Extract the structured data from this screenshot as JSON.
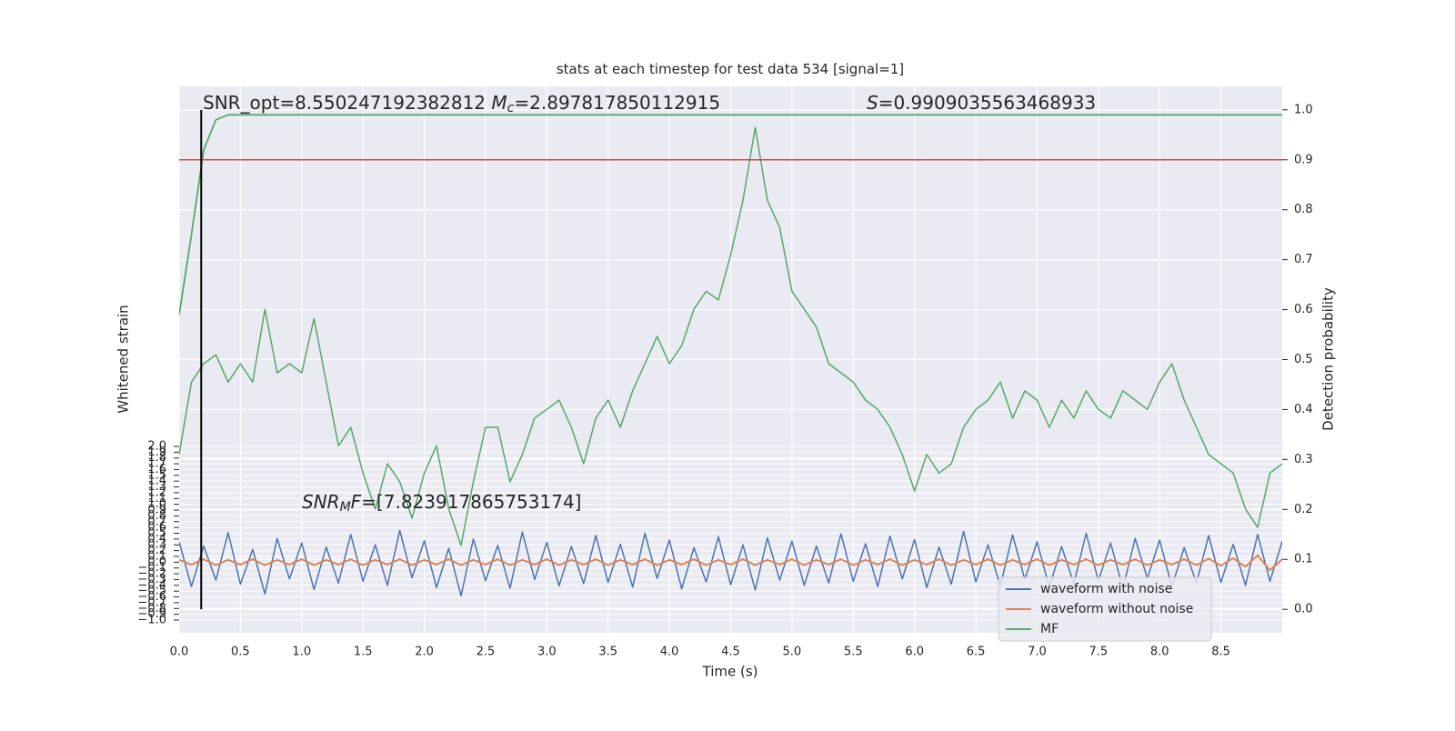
{
  "chart_data": {
    "type": "line",
    "title": "stats at each timestep for test data 534 [signal=1]",
    "xlabel": "Time (s)",
    "ylabel": "Whitened strain",
    "y2label": "Detection probability",
    "xlim": [
      0,
      9.0
    ],
    "ylim": [
      -1.22,
      8.22
    ],
    "y2lim": [
      -0.047,
      1.047
    ],
    "grid": true,
    "legend": "lower right",
    "xticks": [
      {
        "value": 0,
        "label": "0.0"
      },
      0.5,
      {
        "value": 1,
        "label": "1.0"
      },
      1.5,
      {
        "value": 2,
        "label": "2.0"
      },
      2.5,
      {
        "value": 3,
        "label": "3.0"
      },
      3.5,
      {
        "value": 4,
        "label": "4.0"
      },
      4.5,
      {
        "value": 5,
        "label": "5.0"
      },
      5.5,
      {
        "value": 6,
        "label": "6.0"
      },
      6.5,
      {
        "value": 7,
        "label": "7.0"
      },
      7.5,
      {
        "value": 8,
        "label": "8.0"
      },
      8.5
    ],
    "yticks": [
      {
        "value": -1,
        "label": "−1.0"
      },
      {
        "value": -0.9,
        "label": "−0.9"
      },
      {
        "value": -0.8,
        "label": "−0.8"
      },
      {
        "value": -0.7,
        "label": "−0.7"
      },
      {
        "value": -0.6,
        "label": "−0.6"
      },
      {
        "value": -0.5,
        "label": "−0.5"
      },
      {
        "value": -0.4,
        "label": "−0.4"
      },
      {
        "value": -0.3,
        "label": "−0.3"
      },
      {
        "value": -0.2,
        "label": "−0.2"
      },
      {
        "value": -0.1,
        "label": "−0.1"
      },
      {
        "value": 0,
        "label": "0.0"
      },
      0.1,
      0.2,
      0.3,
      0.4,
      0.5,
      0.6,
      0.7,
      0.8,
      0.9,
      {
        "value": 1,
        "label": "1.0"
      },
      1.1,
      1.2,
      1.3,
      1.4,
      1.5,
      1.6,
      1.7,
      1.8,
      1.9,
      {
        "value": 2,
        "label": "2.0"
      }
    ],
    "y2ticks": [
      {
        "value": 0,
        "label": "0.0"
      },
      0.1,
      0.2,
      0.3,
      0.4,
      0.5,
      0.6,
      0.7,
      0.8,
      0.9,
      {
        "value": 1,
        "label": "1.0"
      }
    ],
    "x": [
      0,
      0.1,
      0.2,
      0.3,
      0.4,
      0.5,
      0.6,
      0.7,
      0.8,
      0.9,
      1,
      1.1,
      1.2,
      1.3,
      1.4,
      1.5,
      1.6,
      1.7,
      1.8,
      1.9,
      2,
      2.1,
      2.2,
      2.3,
      2.4,
      2.5,
      2.6,
      2.7,
      2.8,
      2.9,
      3,
      3.1,
      3.2,
      3.3,
      3.4,
      3.5,
      3.6,
      3.7,
      3.8,
      3.9,
      4,
      4.1,
      4.2,
      4.3,
      4.4,
      4.5,
      4.6,
      4.7,
      4.8,
      4.9,
      5,
      5.1,
      5.2,
      5.3,
      5.4,
      5.5,
      5.6,
      5.7,
      5.8,
      5.9,
      6,
      6.1,
      6.2,
      6.3,
      6.4,
      6.5,
      6.6,
      6.7,
      6.8,
      6.9,
      7,
      7.1,
      7.2,
      7.3,
      7.4,
      7.5,
      7.6,
      7.7,
      7.8,
      7.9,
      8,
      8.1,
      8.2,
      8.3,
      8.4,
      8.5,
      8.6,
      8.7,
      8.8,
      8.9,
      9
    ],
    "series": [
      {
        "name": "waveform with noise",
        "color": "#4c72b0",
        "values": [
          0.35,
          -0.42,
          0.28,
          -0.31,
          0.51,
          -0.38,
          0.22,
          -0.55,
          0.41,
          -0.29,
          0.33,
          -0.47,
          0.26,
          -0.36,
          0.48,
          -0.33,
          0.3,
          -0.4,
          0.55,
          -0.27,
          0.37,
          -0.44,
          0.24,
          -0.58,
          0.4,
          -0.32,
          0.29,
          -0.45,
          0.52,
          -0.3,
          0.34,
          -0.41,
          0.27,
          -0.37,
          0.46,
          -0.35,
          0.31,
          -0.43,
          0.5,
          -0.28,
          0.38,
          -0.46,
          0.25,
          -0.34,
          0.44,
          -0.39,
          0.3,
          -0.48,
          0.42,
          -0.31,
          0.36,
          -0.4,
          0.28,
          -0.36,
          0.49,
          -0.33,
          0.32,
          -0.42,
          0.45,
          -0.29,
          0.39,
          -0.44,
          0.26,
          -0.38,
          0.53,
          -0.34,
          0.3,
          -0.41,
          0.47,
          -0.3,
          0.35,
          -0.43,
          0.27,
          -0.37,
          0.5,
          -0.32,
          0.33,
          -0.45,
          0.41,
          -0.28,
          0.38,
          -0.42,
          0.25,
          -0.36,
          0.46,
          -0.35,
          0.31,
          -0.4,
          0.48,
          -0.33,
          0.36
        ]
      },
      {
        "name": "waveform without noise",
        "color": "#dd8452",
        "values": [
          0.04,
          -0.04,
          0.05,
          -0.05,
          0.04,
          -0.04,
          0.05,
          -0.05,
          0.04,
          -0.04,
          0.05,
          -0.05,
          0.04,
          -0.04,
          0.05,
          -0.05,
          0.04,
          -0.04,
          0.05,
          -0.05,
          0.04,
          -0.04,
          0.05,
          -0.05,
          0.04,
          -0.04,
          0.05,
          -0.05,
          0.04,
          -0.04,
          0.05,
          -0.05,
          0.04,
          -0.04,
          0.05,
          -0.05,
          0.04,
          -0.04,
          0.05,
          -0.05,
          0.04,
          -0.04,
          0.05,
          -0.05,
          0.04,
          -0.04,
          0.05,
          -0.05,
          0.04,
          -0.04,
          0.05,
          -0.05,
          0.04,
          -0.04,
          0.05,
          -0.05,
          0.04,
          -0.04,
          0.05,
          -0.05,
          0.04,
          -0.04,
          0.05,
          -0.05,
          0.04,
          -0.04,
          0.05,
          -0.05,
          0.04,
          -0.04,
          0.05,
          -0.05,
          0.04,
          -0.04,
          0.05,
          -0.05,
          0.04,
          -0.04,
          0.05,
          -0.05,
          0.04,
          -0.04,
          0.05,
          -0.05,
          0.06,
          -0.06,
          0.07,
          -0.08,
          0.12,
          -0.14,
          0.05
        ]
      },
      {
        "name": "MF",
        "color": "#55a868",
        "values": [
          1.86,
          3.11,
          3.43,
          3.58,
          3.11,
          3.43,
          3.11,
          4.37,
          3.27,
          3.43,
          3.27,
          4.21,
          3.11,
          2.01,
          2.33,
          1.54,
          0.92,
          1.7,
          1.39,
          0.76,
          1.54,
          2.01,
          0.92,
          0.29,
          1.39,
          2.33,
          2.33,
          1.39,
          1.86,
          2.49,
          2.64,
          2.8,
          2.33,
          1.7,
          2.49,
          2.8,
          2.33,
          2.96,
          3.43,
          3.9,
          3.43,
          3.74,
          4.37,
          4.68,
          4.53,
          5.31,
          6.25,
          7.51,
          6.25,
          5.78,
          4.68,
          4.37,
          4.06,
          3.43,
          3.27,
          3.11,
          2.8,
          2.64,
          2.33,
          1.86,
          1.23,
          1.86,
          1.54,
          1.7,
          2.33,
          2.64,
          2.8,
          3.11,
          2.49,
          2.96,
          2.8,
          2.33,
          2.8,
          2.49,
          2.96,
          2.64,
          2.49,
          2.96,
          2.8,
          2.64,
          3.11,
          3.43,
          2.8,
          2.33,
          1.86,
          1.7,
          1.54,
          0.92,
          0.6,
          1.54,
          1.7
        ]
      }
    ],
    "probability": {
      "color": "#55a868",
      "values": [
        0.59,
        0.75,
        0.92,
        0.98,
        0.99,
        0.99,
        0.99,
        0.99,
        0.99,
        0.99,
        0.99,
        0.99,
        0.99,
        0.99,
        0.99,
        0.99,
        0.99,
        0.99,
        0.99,
        0.99,
        0.99,
        0.99,
        0.99,
        0.99,
        0.99,
        0.99,
        0.99,
        0.99,
        0.99,
        0.99,
        0.99,
        0.99,
        0.99,
        0.99,
        0.99,
        0.99,
        0.99,
        0.99,
        0.99,
        0.99,
        0.99,
        0.99,
        0.99,
        0.99,
        0.99,
        0.99,
        0.99,
        0.99,
        0.99,
        0.99,
        0.99,
        0.99,
        0.99,
        0.99,
        0.99,
        0.99,
        0.99,
        0.99,
        0.99,
        0.99,
        0.99,
        0.99,
        0.99,
        0.99,
        0.99,
        0.99,
        0.99,
        0.99,
        0.99,
        0.99,
        0.99,
        0.99,
        0.99,
        0.99,
        0.99,
        0.99,
        0.99,
        0.99,
        0.99,
        0.99,
        0.99,
        0.99,
        0.99,
        0.99,
        0.99,
        0.99,
        0.99,
        0.99,
        0.99,
        0.99,
        0.99
      ]
    },
    "threshold": {
      "y2": 0.9,
      "color": "#c44e52"
    },
    "vline": {
      "x": 0.18,
      "y2": [
        0,
        1
      ],
      "color": "#000000"
    },
    "annotations": [
      {
        "parts": [
          {
            "text": "SNR_opt=8.550247192382812 "
          },
          {
            "text": "M",
            "italic": true
          },
          {
            "text": "c",
            "italic": true,
            "sub": true
          },
          {
            "text": "=2.897817850112915"
          }
        ]
      },
      {
        "parts": [
          {
            "text": "S",
            "italic": true
          },
          {
            "text": "=0.9909035563468933"
          }
        ]
      },
      {
        "parts": [
          {
            "text": "SNR",
            "italic": true
          },
          {
            "text": "M",
            "italic": true,
            "sub": true
          },
          {
            "text": "F",
            "italic": true
          },
          {
            "text": "=[7.823917865753174]"
          }
        ]
      }
    ]
  }
}
